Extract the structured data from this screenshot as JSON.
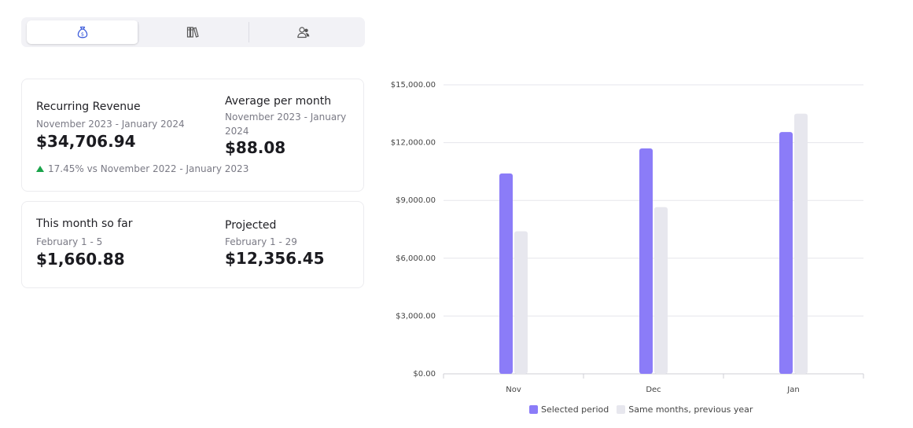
{
  "tabs": [
    {
      "icon": "money-bag-icon",
      "active": true
    },
    {
      "icon": "books-icon",
      "active": false
    },
    {
      "icon": "users-icon",
      "active": false
    }
  ],
  "recurring": {
    "label": "Recurring Revenue",
    "period": "November 2023 - January 2024",
    "value": "$34,706.94",
    "delta": "17.45% vs November 2022 - January 2023",
    "delta_color": "#1aa34a"
  },
  "average": {
    "label": "Average per month",
    "period": "November 2023 - January 2024",
    "value": "$88.08"
  },
  "month_so_far": {
    "label": "This month so far",
    "period": "February 1 - 5",
    "value": "$1,660.88"
  },
  "projected": {
    "label": "Projected",
    "period": "February 1 - 29",
    "value": "$12,356.45"
  },
  "chart_data": {
    "type": "bar",
    "categories": [
      "Nov",
      "Dec",
      "Jan"
    ],
    "series": [
      {
        "name": "Selected period",
        "values": [
          10400,
          11700,
          12550
        ],
        "color": "#8b7cf8"
      },
      {
        "name": "Same months, previous year",
        "values": [
          7400,
          8650,
          13500
        ],
        "color": "#e7e7ee"
      }
    ],
    "yticks": [
      "$0.00",
      "$3,000.00",
      "$6,000.00",
      "$9,000.00",
      "$12,000.00",
      "$15,000.00"
    ],
    "ylim": [
      0,
      15000
    ],
    "grid": true,
    "legend": "bottom"
  }
}
